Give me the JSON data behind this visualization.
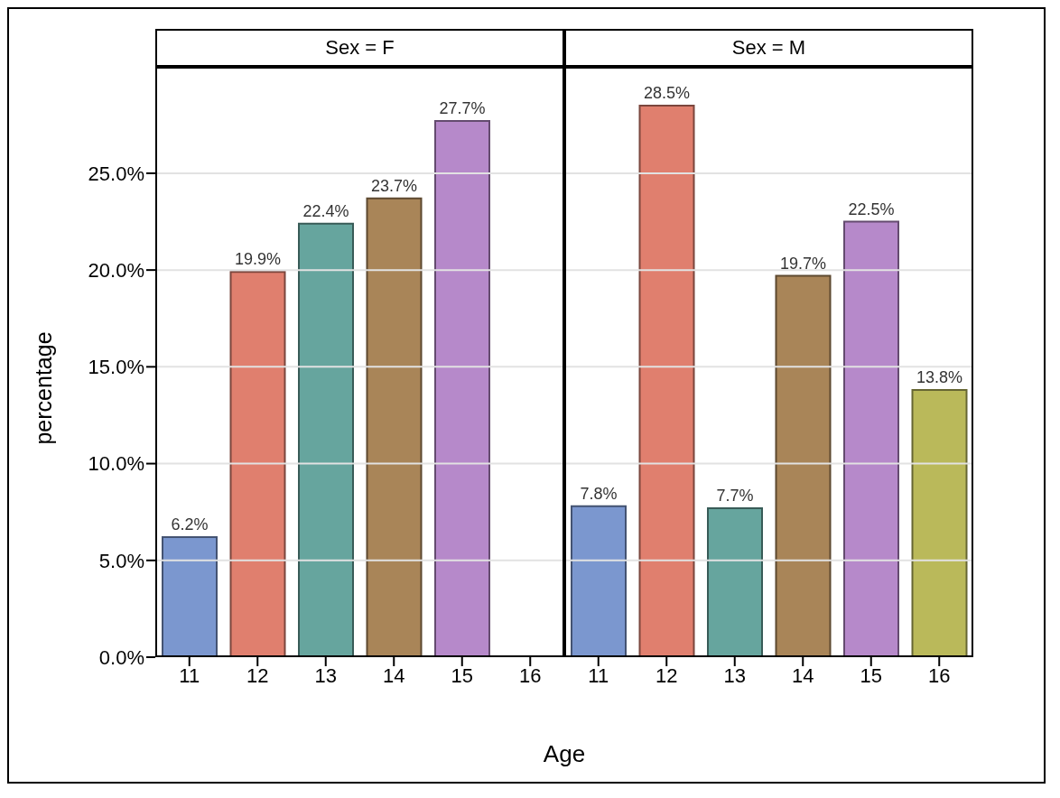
{
  "chart_data": [
    {
      "type": "bar",
      "title": "Sex = F",
      "ylabel": "percentage",
      "xlabel": "Age",
      "categories": [
        "11",
        "12",
        "13",
        "14",
        "15",
        "16"
      ],
      "values": [
        6.2,
        19.9,
        22.4,
        23.7,
        27.7,
        null
      ],
      "colors": [
        "#7b97cf",
        "#e07f6e",
        "#66a59e",
        "#a98558",
        "#b689ca",
        null
      ],
      "value_labels": [
        "6.2%",
        "19.9%",
        "22.4%",
        "23.7%",
        "27.7%",
        null
      ],
      "ylim": [
        0,
        30.5
      ],
      "yticks": [
        {
          "value": 0,
          "label": "0.0%"
        },
        {
          "value": 5,
          "label": "5.0%"
        },
        {
          "value": 10,
          "label": "10.0%"
        },
        {
          "value": 15,
          "label": "15.0%"
        },
        {
          "value": 20,
          "label": "20.0%"
        },
        {
          "value": 25,
          "label": "25.0%"
        }
      ],
      "grid": "y"
    },
    {
      "type": "bar",
      "title": "Sex = M",
      "categories": [
        "11",
        "12",
        "13",
        "14",
        "15",
        "16"
      ],
      "values": [
        7.8,
        28.5,
        7.7,
        19.7,
        22.5,
        13.8
      ],
      "colors": [
        "#7b97cf",
        "#e07f6e",
        "#66a59e",
        "#a98558",
        "#b689ca",
        "#bab95a"
      ],
      "value_labels": [
        "7.8%",
        "28.5%",
        "7.7%",
        "19.7%",
        "22.5%",
        "13.8%"
      ],
      "ylim": [
        0,
        30.5
      ],
      "yticks": [
        0,
        5,
        10,
        15,
        20,
        25
      ],
      "grid": "y",
      "tick_labels": "x"
    }
  ]
}
